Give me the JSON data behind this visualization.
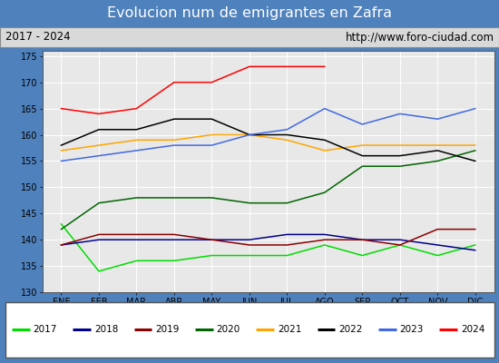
{
  "title": "Evolucion num de emigrantes en Zafra",
  "subtitle_left": "2017 - 2024",
  "subtitle_right": "http://www.foro-ciudad.com",
  "months": [
    "ENE",
    "FEB",
    "MAR",
    "ABR",
    "MAY",
    "JUN",
    "JUL",
    "AGO",
    "SEP",
    "OCT",
    "NOV",
    "DIC"
  ],
  "ylim": [
    130,
    176
  ],
  "yticks": [
    130,
    135,
    140,
    145,
    150,
    155,
    160,
    165,
    170,
    175
  ],
  "series": {
    "2017": {
      "color": "#00dd00",
      "data": [
        143,
        134,
        136,
        136,
        137,
        137,
        137,
        139,
        137,
        139,
        137,
        139
      ]
    },
    "2018": {
      "color": "#00008b",
      "data": [
        139,
        140,
        140,
        140,
        140,
        140,
        141,
        141,
        140,
        140,
        139,
        138
      ]
    },
    "2019": {
      "color": "#8b0000",
      "data": [
        139,
        141,
        141,
        141,
        140,
        139,
        139,
        140,
        140,
        139,
        142,
        142
      ]
    },
    "2020": {
      "color": "#006400",
      "data": [
        142,
        147,
        148,
        148,
        148,
        147,
        147,
        149,
        154,
        154,
        155,
        157
      ]
    },
    "2021": {
      "color": "#ffa500",
      "data": [
        157,
        158,
        159,
        159,
        160,
        160,
        159,
        157,
        158,
        158,
        158,
        158
      ]
    },
    "2022": {
      "color": "#000000",
      "data": [
        158,
        161,
        161,
        163,
        163,
        160,
        160,
        159,
        156,
        156,
        157,
        155
      ]
    },
    "2023": {
      "color": "#4169e1",
      "data": [
        155,
        156,
        157,
        158,
        158,
        160,
        161,
        165,
        162,
        164,
        163,
        165
      ]
    },
    "2024": {
      "color": "#ff0000",
      "data": [
        165,
        164,
        165,
        170,
        170,
        173,
        173,
        173,
        null,
        null,
        null,
        null
      ]
    }
  },
  "title_bg_color": "#4f81bd",
  "title_font_color": "#ffffff",
  "subtitle_bg_color": "#d9d9d9",
  "plot_bg_color": "#e8e8e8",
  "grid_color": "#ffffff",
  "legend_bg_color": "#f0f0f0",
  "outer_bg_color": "#4f81bd"
}
